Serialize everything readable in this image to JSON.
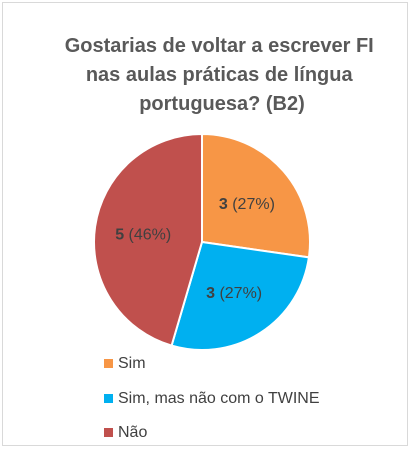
{
  "chart_data": {
    "type": "pie",
    "title": "Gostarias de voltar a escrever FI nas aulas práticas de língua portuguesa? (B2)",
    "title_lines": [
      "Gostarias de voltar a escrever FI",
      "nas aulas práticas de língua",
      "portuguesa? (B2)"
    ],
    "categories": [
      "Sim",
      "Sim, mas não com o TWINE",
      "Não"
    ],
    "values": [
      3,
      3,
      5
    ],
    "percent_labels": [
      "(27%)",
      "(27%)",
      "(46%)"
    ],
    "colors": [
      "#f79646",
      "#00b0f0",
      "#c0504d"
    ],
    "legend_position": "bottom-left"
  }
}
